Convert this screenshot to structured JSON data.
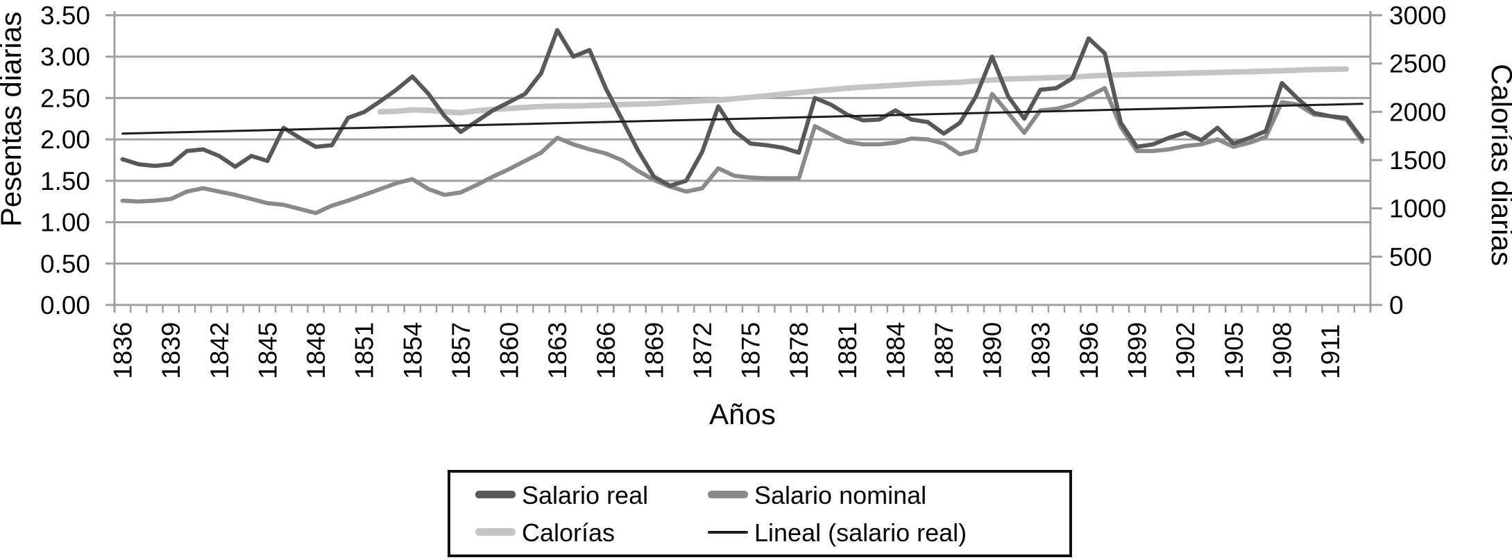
{
  "chart_data": {
    "type": "line",
    "title": "",
    "x_axis": {
      "title": "Años",
      "start_year": 1836,
      "end_year": 1913,
      "tick_every_years": 1,
      "label_every_years": 3,
      "labeled_ticks": [
        "1836",
        "1839",
        "1842",
        "1845",
        "1848",
        "1851",
        "1854",
        "1857",
        "1860",
        "1863",
        "1866",
        "1869",
        "1872",
        "1875",
        "1878",
        "1881",
        "1884",
        "1887",
        "1890",
        "1893",
        "1896",
        "1899",
        "1902",
        "1905",
        "1908",
        "1911"
      ]
    },
    "y_axis_left": {
      "title": "Pesentas diarias",
      "min": 0,
      "max": 3.5,
      "ticks": [
        "0.00",
        "0.50",
        "1.00",
        "1.50",
        "2.00",
        "2.50",
        "3.00",
        "3.50"
      ]
    },
    "y_axis_right": {
      "title": "Calorías diarias",
      "min": 0,
      "max": 3000,
      "ticks": [
        "0",
        "500",
        "1000",
        "1500",
        "2000",
        "2500",
        "3000"
      ]
    },
    "grid": {
      "horizontal": true,
      "vertical": false,
      "color": "#a0a0a0"
    },
    "legend_position": "bottom",
    "series": [
      {
        "name": "Salario real",
        "axis": "left",
        "color": "#585858",
        "width": 6,
        "start_year": 1836,
        "values": [
          1.76,
          1.7,
          1.68,
          1.7,
          1.86,
          1.88,
          1.8,
          1.67,
          1.8,
          1.74,
          2.14,
          2.02,
          1.91,
          1.93,
          2.26,
          2.33,
          2.46,
          2.6,
          2.76,
          2.55,
          2.28,
          2.09,
          2.22,
          2.35,
          2.45,
          2.55,
          2.8,
          3.32,
          3.0,
          3.08,
          2.62,
          2.25,
          1.87,
          1.55,
          1.44,
          1.5,
          1.85,
          2.4,
          2.1,
          1.95,
          1.93,
          1.9,
          1.84,
          2.5,
          2.42,
          2.3,
          2.23,
          2.24,
          2.35,
          2.24,
          2.21,
          2.07,
          2.2,
          2.52,
          3.0,
          2.52,
          2.25,
          2.6,
          2.62,
          2.74,
          3.22,
          3.04,
          2.2,
          1.91,
          1.94,
          2.02,
          2.08,
          1.99,
          2.14,
          1.95,
          2.02,
          2.1,
          2.68,
          2.49,
          2.32,
          2.28,
          2.26,
          2.0
        ]
      },
      {
        "name": "Salario nominal",
        "axis": "left",
        "color": "#8a8a8a",
        "width": 6,
        "start_year": 1836,
        "values": [
          1.26,
          1.25,
          1.26,
          1.28,
          1.37,
          1.41,
          1.37,
          1.33,
          1.28,
          1.23,
          1.21,
          1.16,
          1.11,
          1.2,
          1.26,
          1.33,
          1.4,
          1.47,
          1.52,
          1.4,
          1.33,
          1.36,
          1.45,
          1.55,
          1.64,
          1.74,
          1.84,
          2.02,
          1.94,
          1.88,
          1.83,
          1.75,
          1.62,
          1.51,
          1.43,
          1.37,
          1.41,
          1.65,
          1.56,
          1.54,
          1.53,
          1.53,
          1.53,
          2.16,
          2.06,
          1.97,
          1.94,
          1.94,
          1.96,
          2.01,
          2.0,
          1.95,
          1.82,
          1.87,
          2.55,
          2.32,
          2.08,
          2.35,
          2.37,
          2.42,
          2.52,
          2.62,
          2.15,
          1.86,
          1.86,
          1.88,
          1.92,
          1.94,
          2.0,
          1.91,
          1.96,
          2.03,
          2.45,
          2.42,
          2.3,
          2.28,
          2.24,
          1.97
        ]
      },
      {
        "name": "Calorías",
        "axis": "right",
        "color": "#c4c4c4",
        "width": 8,
        "start_year": 1852,
        "values": [
          2000,
          2005,
          2020,
          2015,
          2000,
          1990,
          2010,
          2025,
          2035,
          2045,
          2055,
          2060,
          2060,
          2065,
          2070,
          2075,
          2080,
          2085,
          2095,
          2105,
          2115,
          2120,
          2135,
          2150,
          2165,
          2185,
          2200,
          2215,
          2230,
          2245,
          2255,
          2265,
          2275,
          2285,
          2295,
          2300,
          2305,
          2320,
          2330,
          2340,
          2345,
          2350,
          2355,
          2360,
          2370,
          2378,
          2383,
          2388,
          2392,
          2396,
          2400,
          2404,
          2408,
          2412,
          2416,
          2420,
          2426,
          2432,
          2437,
          2440,
          2443
        ]
      },
      {
        "name": "Lineal (salario real)",
        "axis": "left",
        "color": "#1c1c1c",
        "width": 3,
        "trend": {
          "start_year": 1836,
          "start_value": 2.07,
          "end_year": 1913,
          "end_value": 2.43
        }
      }
    ]
  }
}
